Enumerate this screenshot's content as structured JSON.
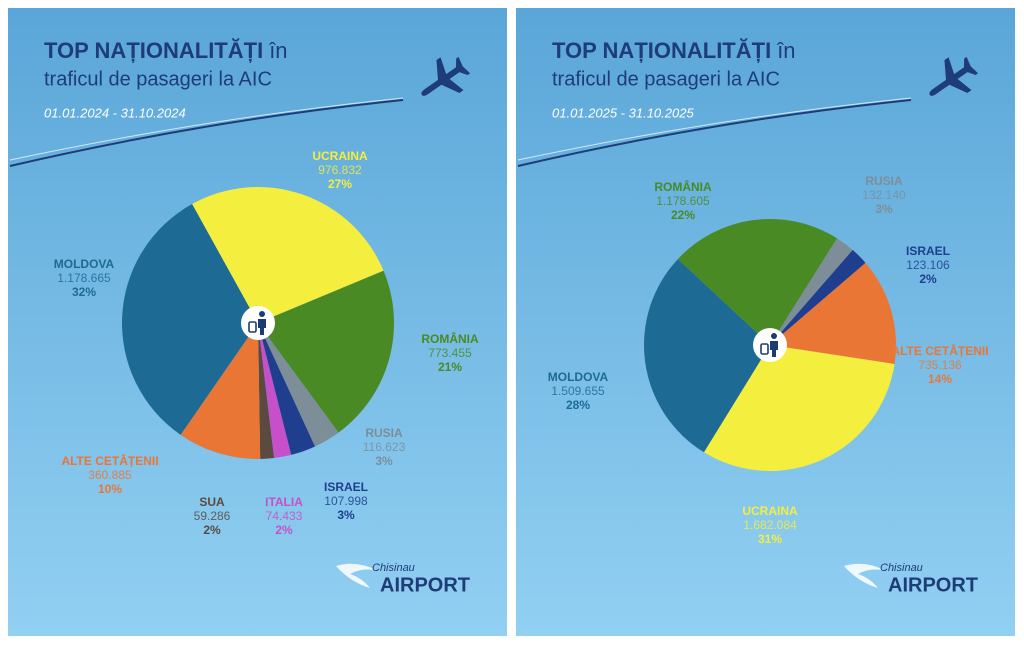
{
  "chart_data": [
    {
      "type": "pie",
      "title": "TOP NAȚIONALITĂȚI",
      "title_tail": "în",
      "subtitle": "traficul de pasageri la AIC",
      "date_range": "01.01.2024 - 31.10.2024",
      "categories": [
        "UCRAINA",
        "ROMÂNIA",
        "RUSIA",
        "ISRAEL",
        "ITALIA",
        "SUA",
        "ALTE CETĂȚENII",
        "MOLDOVA"
      ],
      "values": [
        976832,
        773455,
        116623,
        107998,
        74433,
        59286,
        360885,
        1178665
      ],
      "value_labels": [
        "976.832",
        "773.455",
        "116.623",
        "107.998",
        "74.433",
        "59.286",
        "360.885",
        "1.178.665"
      ],
      "percent_labels": [
        "27%",
        "21%",
        "3%",
        "3%",
        "2%",
        "2%",
        "10%",
        "32%"
      ],
      "colors": [
        "#f4ee3e",
        "#4a8a24",
        "#7d8e99",
        "#1f3f8e",
        "#c650c9",
        "#5a4a40",
        "#ea7636",
        "#1d6b95"
      ],
      "logo": {
        "top": "Chisinau",
        "main": "AIRPORT"
      }
    },
    {
      "type": "pie",
      "title": "TOP NAȚIONALITĂȚI",
      "title_tail": "în",
      "subtitle": "traficul de pasageri la AIC",
      "date_range": "01.01.2025 - 31.10.2025",
      "categories": [
        "ROMÂNIA",
        "RUSIA",
        "ISRAEL",
        "ALTE CETĂȚENII",
        "UCRAINA",
        "MOLDOVA"
      ],
      "values": [
        1178605,
        132140,
        123106,
        735136,
        1682084,
        1509655
      ],
      "value_labels": [
        "1.178.605",
        "132.140",
        "123.106",
        "735.136",
        "1.682.084",
        "1.509.655"
      ],
      "percent_labels": [
        "22%",
        "3%",
        "2%",
        "14%",
        "31%",
        "28%"
      ],
      "colors": [
        "#4a8a24",
        "#7d8e99",
        "#1f3f8e",
        "#ea7636",
        "#f4ee3e",
        "#1d6b95"
      ],
      "logo": {
        "top": "Chisinau",
        "main": "AIRPORT"
      }
    }
  ]
}
